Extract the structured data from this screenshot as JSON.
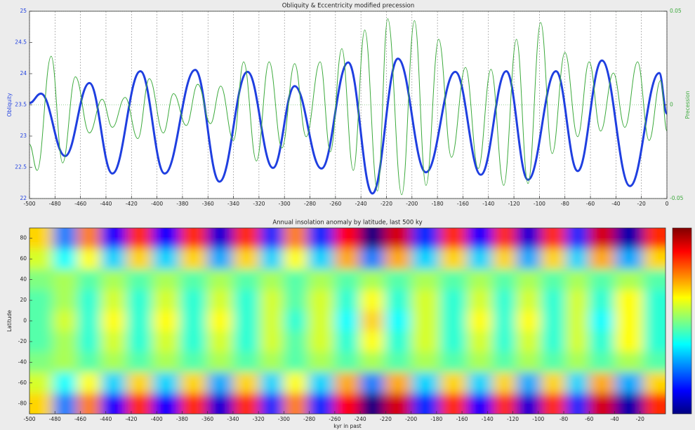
{
  "chart_data": [
    {
      "type": "line",
      "title": "Obliquity & Eccentricity modified precession",
      "ylabel": "Obliquity",
      "y2label": "Precession",
      "xlim": [
        -500,
        0
      ],
      "xticks": [
        -500,
        -480,
        -460,
        -440,
        -420,
        -400,
        -380,
        -360,
        -340,
        -320,
        -300,
        -280,
        -260,
        -240,
        -220,
        -200,
        -180,
        -160,
        -140,
        -120,
        -100,
        -80,
        -60,
        -40,
        -20,
        0
      ],
      "ylim": [
        22,
        25
      ],
      "yticks": [
        22,
        22.5,
        23,
        23.5,
        24,
        24.5,
        25
      ],
      "y2lim": [
        -0.05,
        0.05
      ],
      "y2ticks": [
        -0.05,
        0,
        0.05
      ],
      "xgrid": true,
      "y2grid": true,
      "series": [
        {
          "color": "#1f3fe0",
          "axis": "y",
          "width": 3,
          "x": [
            -500,
            -491,
            -472,
            -453,
            -435,
            -413,
            -394,
            -370,
            -351,
            -329,
            -309,
            -292,
            -271,
            -250,
            -231,
            -211,
            -189,
            -166,
            -146,
            -126,
            -109,
            -87,
            -70,
            -51,
            -29,
            -6,
            0
          ],
          "values": [
            23.53,
            23.68,
            22.68,
            23.85,
            22.4,
            24.04,
            22.4,
            24.06,
            22.27,
            24.03,
            22.49,
            23.8,
            22.48,
            24.18,
            22.08,
            24.24,
            22.42,
            24.03,
            22.38,
            24.04,
            22.3,
            24.04,
            22.44,
            24.21,
            22.2,
            24.01,
            23.36
          ]
        },
        {
          "color": "#3caa3c",
          "axis": "y2",
          "width": 1,
          "x": [
            -500,
            -494,
            -483,
            -474,
            -464,
            -453,
            -443,
            -435,
            -425,
            -415,
            -406,
            -395,
            -387,
            -377,
            -368,
            -358,
            -350,
            -340,
            -332,
            -322,
            -312,
            -302,
            -292,
            -283,
            -272,
            -264,
            -255,
            -246,
            -237,
            -227,
            -219,
            -208,
            -198,
            -189,
            -179,
            -169,
            -158,
            -148,
            -138,
            -128,
            -118,
            -109,
            -99,
            -90,
            -80,
            -70,
            -61,
            -52,
            -42,
            -33,
            -23,
            -14,
            -5,
            0
          ],
          "values": [
            -0.021,
            -0.035,
            0.026,
            -0.031,
            0.015,
            -0.015,
            0.003,
            -0.012,
            0.004,
            -0.018,
            0.014,
            -0.015,
            0.006,
            -0.011,
            0.011,
            -0.01,
            0.01,
            -0.019,
            0.023,
            -0.03,
            0.023,
            -0.023,
            0.022,
            -0.017,
            0.023,
            -0.025,
            0.03,
            -0.035,
            0.04,
            -0.046,
            0.046,
            -0.048,
            0.045,
            -0.043,
            0.035,
            -0.028,
            0.02,
            -0.034,
            0.019,
            -0.043,
            0.035,
            -0.042,
            0.044,
            -0.026,
            0.028,
            -0.017,
            0.023,
            -0.014,
            0.017,
            -0.012,
            0.023,
            -0.019,
            0.013,
            -0.014
          ]
        }
      ]
    },
    {
      "type": "heatmap",
      "title": "Annual insolation anomaly by latitude, last 500 ky",
      "xlabel": "kyr in past",
      "ylabel": "Latitude",
      "colormap": "jet",
      "zlim": [
        -12,
        12
      ],
      "xlim": [
        -500,
        0
      ],
      "xticks": [
        -500,
        -480,
        -460,
        -440,
        -420,
        -400,
        -380,
        -360,
        -340,
        -320,
        -300,
        -280,
        -260,
        -240,
        -220,
        -200,
        -180,
        -160,
        -140,
        -120,
        -100,
        -80,
        -60,
        -40,
        -20
      ],
      "ylim": [
        -90,
        90
      ],
      "yticks": [
        -80,
        -60,
        -40,
        -20,
        0,
        20,
        40,
        60,
        80
      ],
      "x": [
        -491,
        -472,
        -453,
        -435,
        -413,
        -394,
        -370,
        -351,
        -329,
        -309,
        -292,
        -271,
        -250,
        -231,
        -211,
        -189,
        -166,
        -146,
        -126,
        -109,
        -87,
        -70,
        -51,
        -29,
        -6
      ],
      "y": [
        80,
        60,
        40,
        20,
        0,
        -20,
        -40,
        -60,
        -80
      ],
      "values": [
        [
          4,
          -6,
          6,
          -9,
          8,
          -9,
          8,
          -10,
          8,
          -8,
          6,
          -8,
          9,
          -12,
          10,
          -8,
          8,
          -9,
          8,
          -10,
          8,
          -8,
          10,
          -11,
          8
        ],
        [
          2,
          -3,
          3,
          -4,
          4,
          -4,
          4,
          -5,
          4,
          -4,
          3,
          -4,
          5,
          -6,
          5,
          -4,
          4,
          -4,
          4,
          -5,
          4,
          -4,
          5,
          -5,
          4
        ],
        [
          0,
          1,
          -1,
          1,
          -1,
          1,
          -1,
          1,
          -1,
          1,
          -1,
          1,
          -1,
          1,
          -1,
          1,
          -1,
          1,
          -1,
          1,
          -1,
          1,
          -1,
          1,
          -1
        ],
        [
          -1,
          1,
          -2,
          2,
          -2,
          2,
          -2,
          2,
          -2,
          2,
          -1,
          2,
          -2,
          3,
          -2,
          2,
          -2,
          2,
          -2,
          2,
          -2,
          2,
          -2,
          3,
          -2
        ],
        [
          -1,
          2,
          -2,
          3,
          -2,
          3,
          -2,
          3,
          -2,
          2,
          -2,
          2,
          -3,
          4,
          -3,
          2,
          -2,
          3,
          -2,
          3,
          -2,
          2,
          -3,
          3,
          -2
        ],
        [
          -1,
          1,
          -2,
          2,
          -2,
          2,
          -2,
          2,
          -2,
          2,
          -1,
          2,
          -2,
          3,
          -2,
          2,
          -2,
          2,
          -2,
          2,
          -2,
          2,
          -2,
          3,
          -2
        ],
        [
          0,
          1,
          -1,
          1,
          -1,
          1,
          -1,
          1,
          -1,
          1,
          -1,
          1,
          -1,
          1,
          -1,
          1,
          -1,
          1,
          -1,
          1,
          -1,
          1,
          -1,
          1,
          -1
        ],
        [
          2,
          -3,
          3,
          -4,
          4,
          -4,
          4,
          -5,
          4,
          -4,
          3,
          -4,
          5,
          -6,
          5,
          -4,
          4,
          -4,
          4,
          -5,
          4,
          -4,
          5,
          -5,
          4
        ],
        [
          4,
          -6,
          6,
          -9,
          8,
          -9,
          8,
          -10,
          8,
          -8,
          6,
          -8,
          9,
          -12,
          10,
          -8,
          8,
          -9,
          8,
          -10,
          8,
          -8,
          10,
          -11,
          8
        ]
      ]
    }
  ]
}
